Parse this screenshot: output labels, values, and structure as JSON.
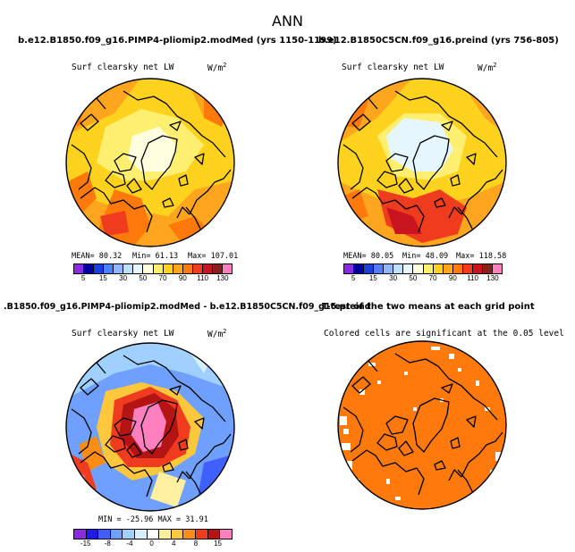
{
  "title": "ANN",
  "variable": "Surf clearsky net LW",
  "units": "W/m",
  "units_exp": "2",
  "panels": {
    "p1": {
      "title": "b.e12.B1850.f09_g16.PIMP4-pliomip2.modMed (yrs 1150-1199)",
      "mean": "MEAN=  80.32",
      "min": "Min=  61.13",
      "max": "Max= 107.01"
    },
    "p2": {
      "title": "b.e12.B1850C5CN.f09_g16.preind (yrs 756-805)",
      "mean": "MEAN=  80.05",
      "min": "Min=  48.09",
      "max": "Max= 118.58"
    },
    "p3": {
      "title": ".B1850.f09_g16.PIMP4-pliomip2.modMed - b.e12.B1850C5CN.f09_g16.preind",
      "minmax": "MIN = -25.96  MAX =  31.91"
    },
    "p4": {
      "title": "T-test of the two means at each grid point",
      "subtitle": "Colored cells are significant at the 0.05 level"
    }
  },
  "colorbar_abs": {
    "colors": [
      "#8a2be2",
      "#0000a0",
      "#1c3fd6",
      "#4f7fff",
      "#8fb6ff",
      "#bfe0ff",
      "#e6f6ff",
      "#ffffe0",
      "#ffef70",
      "#ffd21e",
      "#ffa51e",
      "#ff7a0a",
      "#ef3b1e",
      "#c8141e",
      "#8c1e1e",
      "#ff7fbf"
    ],
    "labels": [
      "5",
      "15",
      "30",
      "50",
      "70",
      "90",
      "110",
      "130"
    ]
  },
  "colorbar_diff": {
    "colors": [
      "#8a2be2",
      "#1c1ce6",
      "#3f5fff",
      "#6f9fff",
      "#9fd0ff",
      "#d6f0ff",
      "#ffffff",
      "#fff0a0",
      "#ffc83c",
      "#ff8c14",
      "#ef3b1e",
      "#b41414",
      "#ff7fbf"
    ],
    "labels": [
      "-15",
      "-8",
      "-4",
      "0",
      "4",
      "8",
      "15"
    ]
  },
  "colors": {
    "ttest": "#ff7a0a"
  }
}
